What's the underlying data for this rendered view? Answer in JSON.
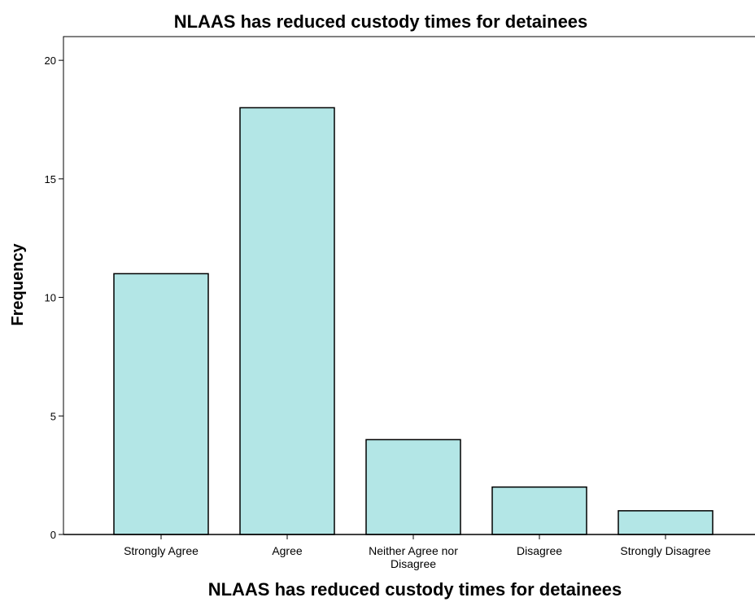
{
  "chart_data": {
    "type": "bar",
    "title": "NLAAS has reduced custody times for detainees",
    "xlabel": "NLAAS has reduced custody times for detainees",
    "ylabel": "Frequency",
    "categories": [
      [
        "Strongly Agree"
      ],
      [
        "Agree"
      ],
      [
        "Neither Agree nor",
        "Disagree"
      ],
      [
        "Disagree"
      ],
      [
        "Strongly Disagree"
      ]
    ],
    "values": [
      11,
      18,
      4,
      2,
      1
    ],
    "ylim": [
      0,
      21
    ],
    "yticks": [
      "0",
      "5",
      "10",
      "15",
      "20"
    ],
    "grid": false,
    "bar_color": "#b3e6e6"
  }
}
